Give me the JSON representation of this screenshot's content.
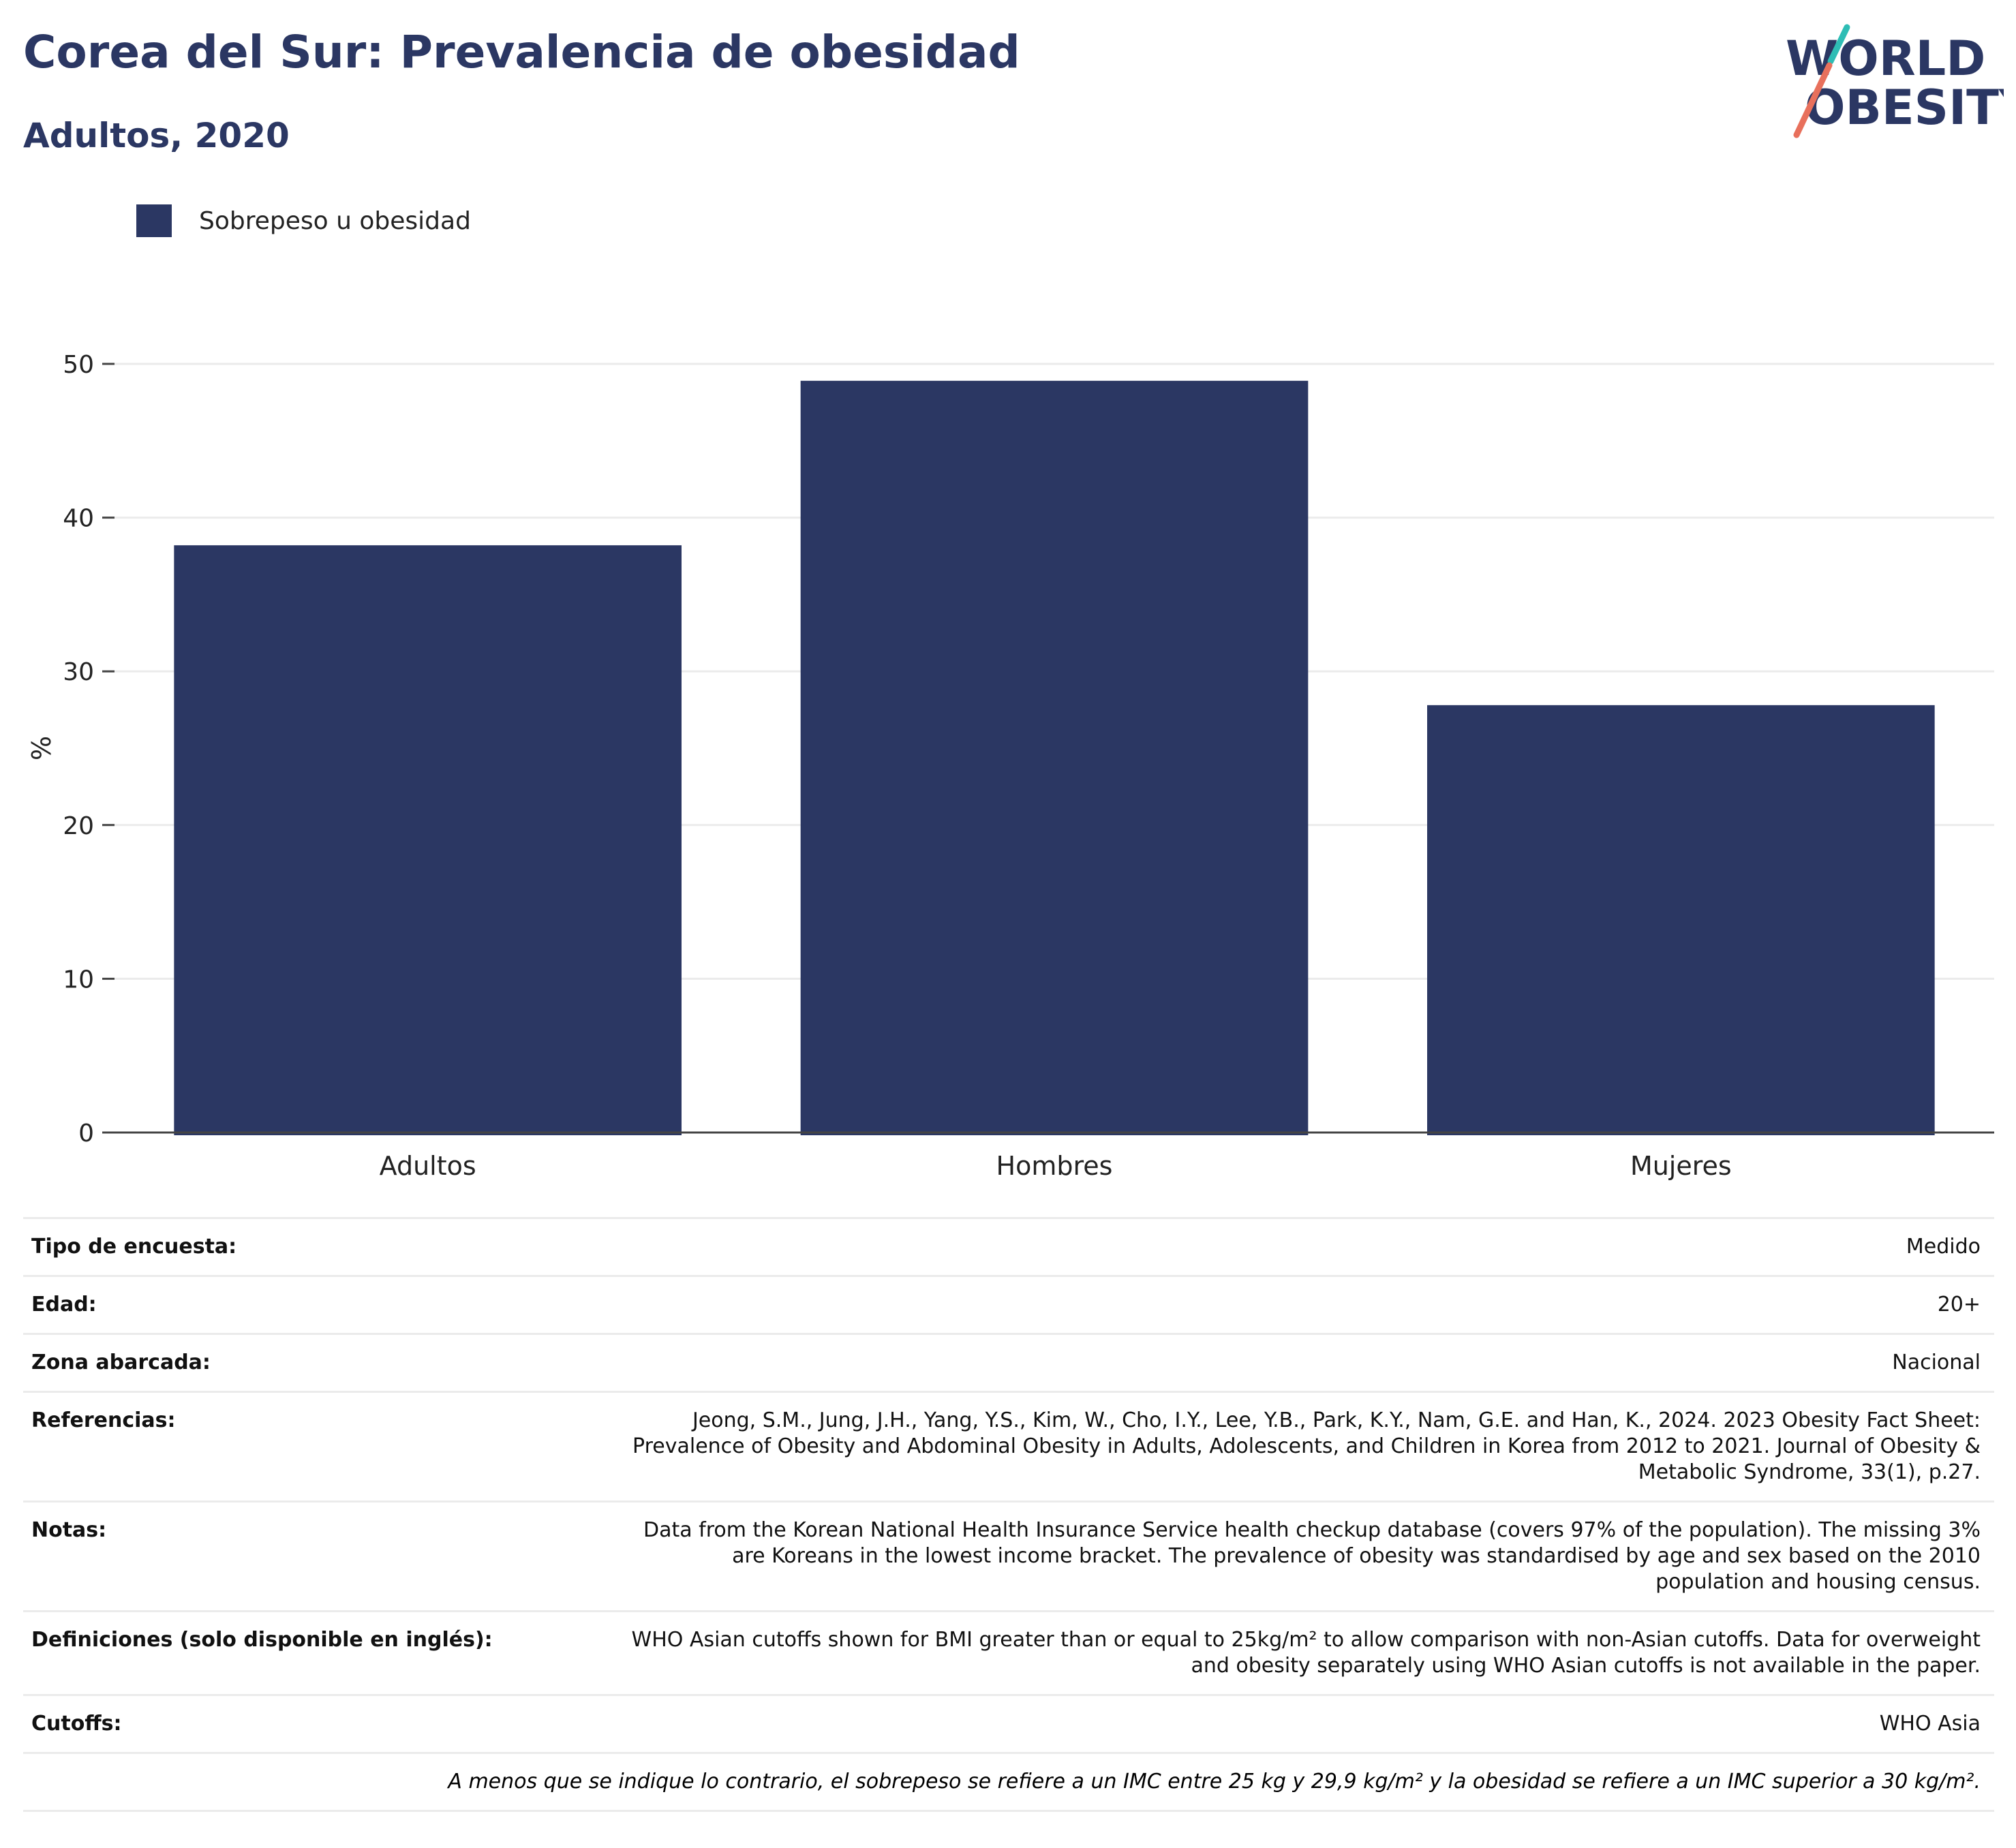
{
  "header": {
    "title": "Corea del Sur: Prevalencia de obesidad",
    "subtitle": "Adultos, 2020"
  },
  "logo": {
    "line1": "WORLD",
    "line2": "OBESITY",
    "colors": {
      "text": "#2b3763",
      "slash_teal": "#2ebdb5",
      "slash_coral": "#e8705c"
    }
  },
  "colors": {
    "bar": "#2b3763",
    "grid": "#ebebeb",
    "axis": "#444444"
  },
  "chart_data": {
    "type": "bar",
    "categories": [
      "Adultos",
      "Hombres",
      "Mujeres"
    ],
    "series": [
      {
        "name": "Sobrepeso u obesidad",
        "values": [
          38.2,
          48.9,
          27.8
        ]
      }
    ],
    "xlabel": "",
    "ylabel": "%",
    "ylim": [
      0,
      50
    ],
    "yticks": [
      0,
      10,
      20,
      30,
      40,
      50
    ],
    "grid": true,
    "legend": "top-left"
  },
  "info": {
    "rows": [
      {
        "label": "Tipo de encuesta:",
        "value": "Medido"
      },
      {
        "label": "Edad:",
        "value": "20+"
      },
      {
        "label": "Zona abarcada:",
        "value": "Nacional"
      },
      {
        "label": "Referencias:",
        "value": "Jeong, S.M., Jung, J.H., Yang, Y.S., Kim, W., Cho, I.Y., Lee, Y.B., Park, K.Y., Nam, G.E. and Han, K., 2024. 2023 Obesity Fact Sheet: Prevalence of Obesity and Abdominal Obesity in Adults, Adolescents, and Children in Korea from 2012 to 2021. Journal of Obesity & Metabolic Syndrome, 33(1), p.27."
      },
      {
        "label": "Notas:",
        "value": "Data from the Korean National Health Insurance Service health checkup database (covers 97% of the population). The missing 3% are Koreans in the lowest income bracket. The prevalence of obesity was standardised by age and sex based on the 2010 population and housing census."
      },
      {
        "label": "Definiciones (solo disponible en inglés):",
        "value": "WHO Asian cutoffs shown for BMI greater than or equal to 25kg/m² to allow comparison with non-Asian cutoffs. Data for overweight and obesity separately using WHO Asian cutoffs is not available in the paper."
      },
      {
        "label": "Cutoffs:",
        "value": "WHO Asia"
      }
    ],
    "footnote": "A menos que se indique lo contrario, el sobrepeso se refiere a un IMC entre 25 kg y 29,9 kg/m² y la obesidad se refiere a un IMC superior a 30 kg/m²."
  }
}
